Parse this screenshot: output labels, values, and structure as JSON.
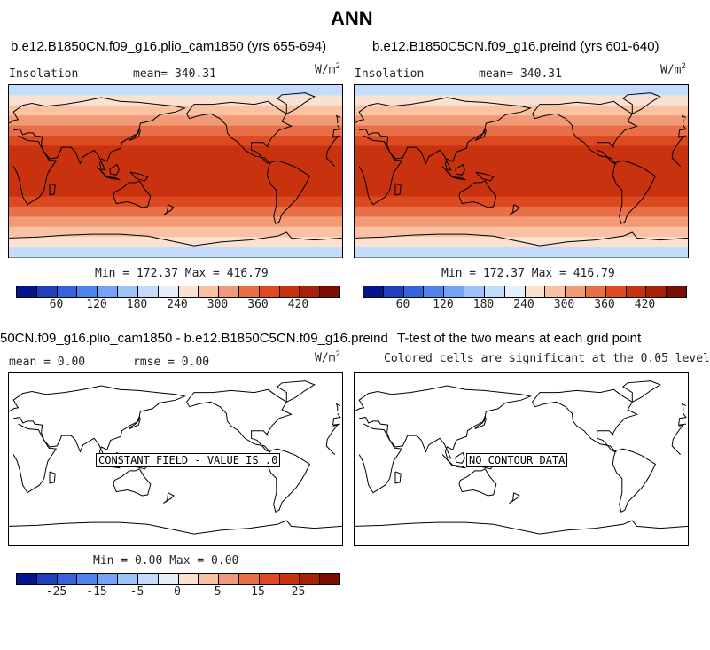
{
  "main_title": "ANN",
  "panels": [
    {
      "title": "b.e12.B1850CN.f09_g16.plio_cam1850 (yrs 655-694)",
      "left": "Insolation",
      "center": "mean=  340.31",
      "units": "W/m",
      "units_sup": "2",
      "minmax": "Min = 172.37 Max = 416.79"
    },
    {
      "title": "b.e12.B1850C5CN.f09_g16.preind (yrs 601-640)",
      "left": "Insolation",
      "center": "mean=  340.31",
      "units": "W/m",
      "units_sup": "2",
      "minmax": "Min = 172.37 Max = 416.79"
    },
    {
      "title": "50CN.f09_g16.plio_cam1850 - b.e12.B1850C5CN.f09_g16.preind",
      "left": "mean =    0.00",
      "center": "rmse =    0.00",
      "units": "W/m",
      "units_sup": "2",
      "minmax": "Min =    0.00 Max =    0.00",
      "box_label": "CONSTANT FIELD - VALUE IS .0"
    },
    {
      "title": "T-test of the two means at each grid point",
      "center": "Colored cells are significant at the 0.05 level",
      "box_label": "NO CONTOUR DATA"
    }
  ],
  "chart_data": [
    {
      "type": "heatmap",
      "title": "b.e12.B1850CN.f09_g16.plio_cam1850 (yrs 655-694)",
      "field": "Insolation",
      "units": "W/m2",
      "mean": 340.31,
      "min": 172.37,
      "max": 416.79,
      "colorbar_ticks": [
        60,
        120,
        180,
        240,
        300,
        360,
        420
      ],
      "lat_band_values_north_to_south": [
        200,
        240,
        280,
        310,
        340,
        370,
        395,
        410,
        416,
        410,
        395,
        370,
        340,
        310,
        280,
        240,
        200
      ]
    },
    {
      "type": "heatmap",
      "title": "b.e12.B1850C5CN.f09_g16.preind (yrs 601-640)",
      "field": "Insolation",
      "units": "W/m2",
      "mean": 340.31,
      "min": 172.37,
      "max": 416.79,
      "colorbar_ticks": [
        60,
        120,
        180,
        240,
        300,
        360,
        420
      ],
      "lat_band_values_north_to_south": [
        200,
        240,
        280,
        310,
        340,
        370,
        395,
        410,
        416,
        410,
        395,
        370,
        340,
        310,
        280,
        240,
        200
      ]
    },
    {
      "type": "heatmap",
      "title": "50CN.f09_g16.plio_cam1850 - b.e12.B1850C5CN.f09_g16.preind",
      "mean": 0.0,
      "rmse": 0.0,
      "min": 0.0,
      "max": 0.0,
      "colorbar_ticks": [
        -25,
        -15,
        -5,
        0,
        5,
        15,
        25
      ],
      "annotation": "CONSTANT FIELD - VALUE IS .0"
    },
    {
      "type": "heatmap",
      "title": "T-test of the two means at each grid point",
      "annotation": "NO CONTOUR DATA"
    }
  ],
  "colorbar_colors": [
    "#00178c",
    "#1f3fbf",
    "#3563d9",
    "#5082ec",
    "#73a2f6",
    "#9ec3fb",
    "#c4dcfb",
    "#e6f0fb",
    "#fbe1d2",
    "#f8c2a3",
    "#f29a75",
    "#e96f48",
    "#dd4a22",
    "#c8320f",
    "#a8220a",
    "#7d0d02"
  ],
  "tick_labels_a": [
    "60",
    "120",
    "180",
    "240",
    "300",
    "360",
    "420"
  ],
  "tick_labels_b": [
    "-25",
    "-15",
    "-5",
    "0",
    "5",
    "15",
    "25"
  ]
}
